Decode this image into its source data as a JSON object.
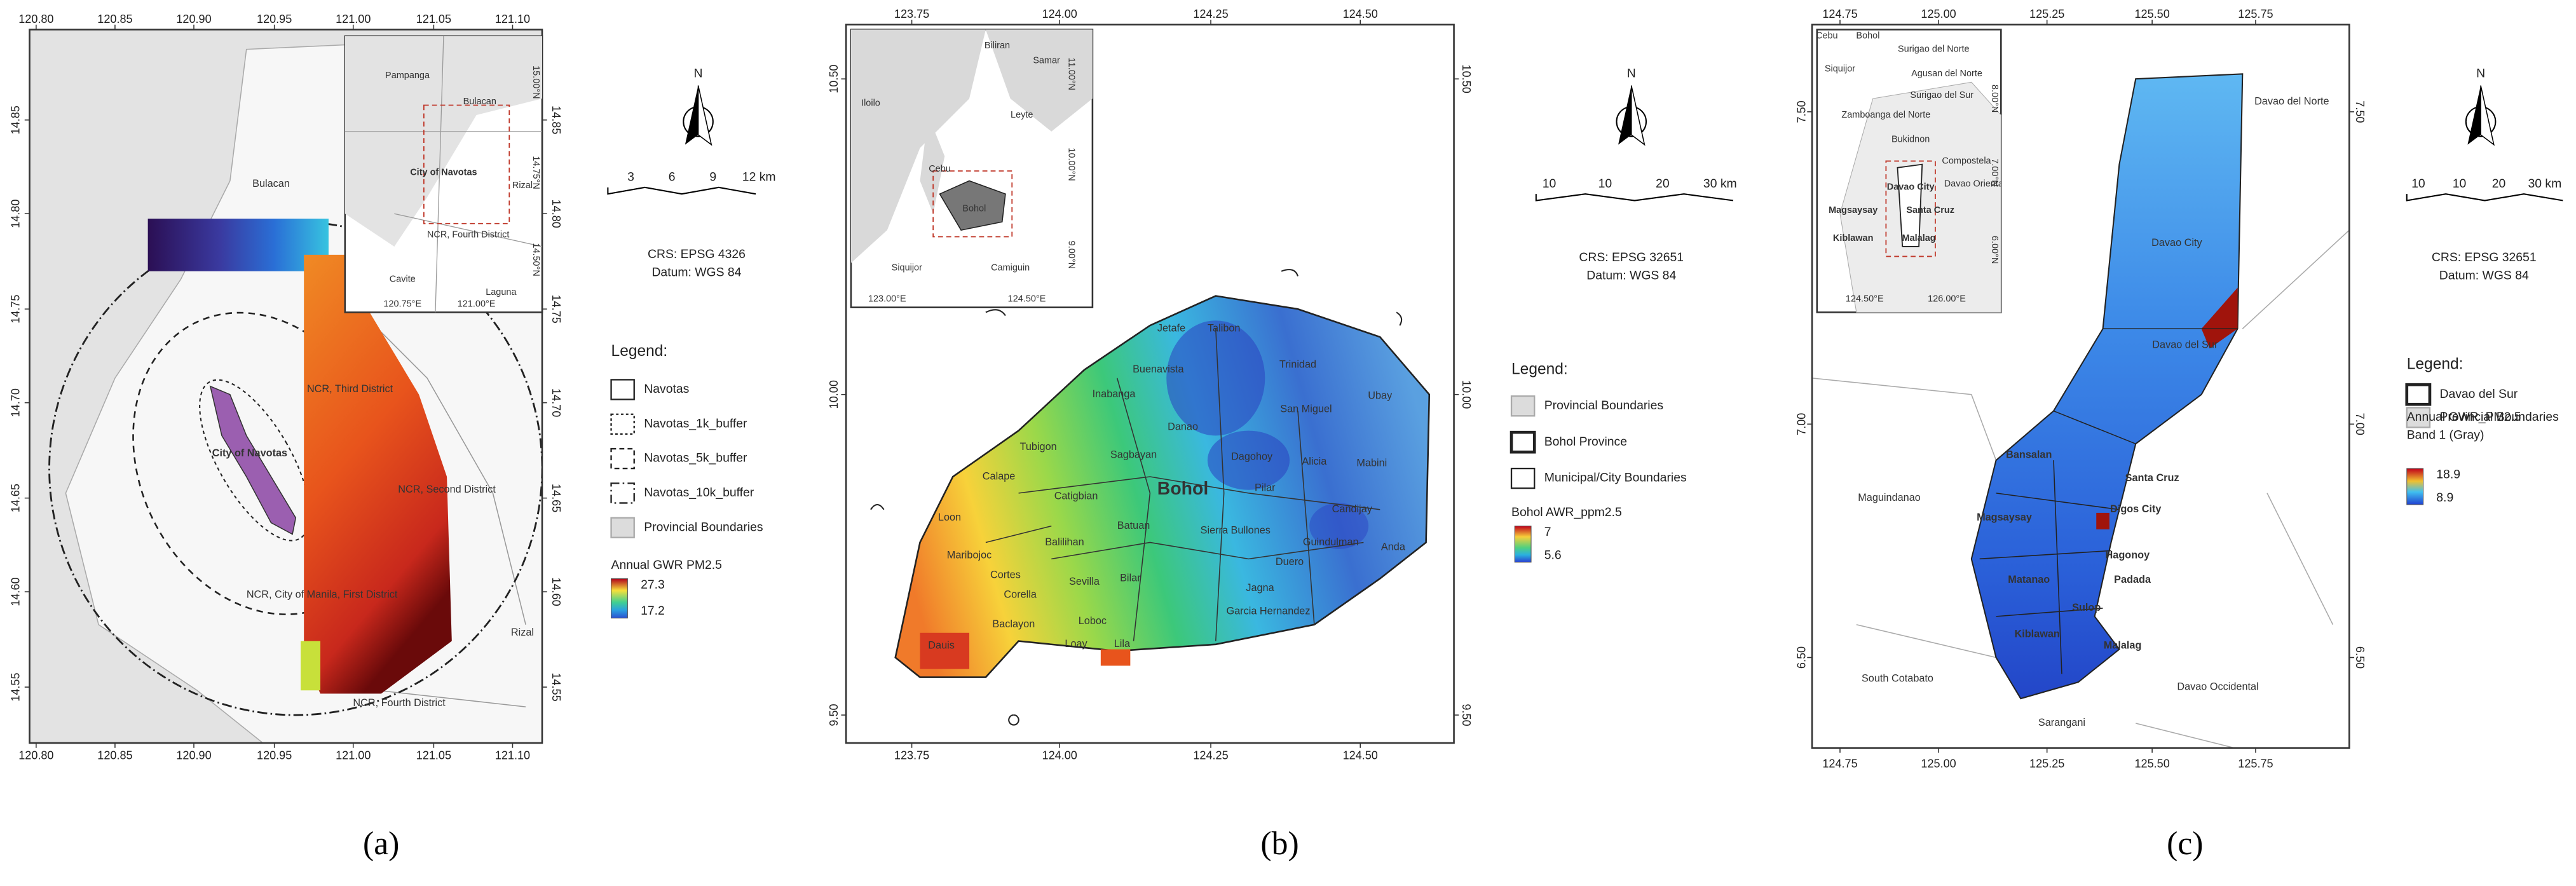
{
  "panels": [
    {
      "caption": "(a)",
      "x_ticks": [
        "120.80",
        "120.85",
        "120.90",
        "120.95",
        "121.00",
        "121.05",
        "121.10"
      ],
      "y_ticks": [
        "14.85",
        "14.80",
        "14.75",
        "14.70",
        "14.65",
        "14.60",
        "14.55"
      ],
      "places": [
        "Bulacan",
        "NCR, Third District",
        "City of Navotas",
        "NCR, Second District",
        "NCR, City of Manila, First District",
        "NCR, Fourth District",
        "Rizal"
      ],
      "inset": {
        "labels": [
          "Pampanga",
          "Bulacan",
          "City of Navotas",
          "Rizal",
          "NCR, Fourth District",
          "Cavite",
          "Laguna"
        ],
        "ticks": [
          "15.00°N",
          "14.75°N",
          "14.50°N",
          "120.75°E",
          "121.00°E"
        ]
      },
      "north": "N",
      "scale": [
        "3",
        "6",
        "9",
        "12 km"
      ],
      "crs": "CRS: EPSG 4326",
      "datum": "Datum: WGS 84",
      "legend": {
        "title": "Legend:",
        "items": [
          "Navotas",
          "Navotas_1k_buffer",
          "Navotas_5k_buffer",
          "Navotas_10k_buffer",
          "Provincial Boundaries"
        ],
        "ramp_title": [
          "Annual GWR PM2.5"
        ],
        "ramp_max": "27.3",
        "ramp_min": "17.2"
      }
    },
    {
      "caption": "(b)",
      "x_ticks": [
        "123.75",
        "124.00",
        "124.25",
        "124.50"
      ],
      "y_ticks": [
        "10.50",
        "10.00",
        "9.50"
      ],
      "places": [
        "Jetafe",
        "Talibon",
        "Buenavista",
        "Trinidad",
        "Inabanga",
        "San Miguel",
        "Ubay",
        "Danao",
        "Tubigon",
        "Sagbayan",
        "Dagohoy",
        "Alicia",
        "Mabini",
        "Calape",
        "Bohol",
        "Pilar",
        "Candijay",
        "Catigbian",
        "Loon",
        "Balilihan",
        "Batuan",
        "Sierra Bullones",
        "Guindulman",
        "Anda",
        "Maribojoc",
        "Cortes",
        "Corella",
        "Sevilla",
        "Bilar",
        "Duero",
        "Baclayon",
        "Jagna",
        "Loboc",
        "Garcia Hernandez",
        "Dauis",
        "Loay",
        "Lila"
      ],
      "inset": {
        "labels": [
          "Biliran",
          "Samar",
          "Iloilo",
          "Leyte",
          "Cebu",
          "Bohol",
          "Siquijor",
          "Camiguin"
        ],
        "ticks": [
          "11.00°N",
          "10.00°N",
          "9.00°N",
          "123.00°E",
          "124.50°E"
        ]
      },
      "north": "N",
      "scale": [
        "10",
        "10",
        "20",
        "30 km"
      ],
      "crs": "CRS: EPSG 32651",
      "datum": "Datum: WGS 84",
      "legend": {
        "title": "Legend:",
        "items": [
          "Provincial Boundaries",
          "Bohol Province",
          "Municipal/City Boundaries"
        ],
        "ramp_title": [
          "Bohol AWR_ppm2.5"
        ],
        "ramp_max": "7",
        "ramp_min": "5.6"
      }
    },
    {
      "caption": "(c)",
      "x_ticks": [
        "124.75",
        "125.00",
        "125.25",
        "125.50",
        "125.75"
      ],
      "y_ticks": [
        "7.50",
        "7.00",
        "6.50"
      ],
      "places": [
        "Davao del Norte",
        "Davao City",
        "Davao del Sur",
        "Maguindanao",
        "Bansalan",
        "Santa Cruz",
        "Digos City",
        "Magsaysay",
        "Hagonoy",
        "Matanao",
        "Padada",
        "Sulop",
        "Kiblawan",
        "Malalag",
        "South Cotabato",
        "Sarangani",
        "Davao Occidental"
      ],
      "inset": {
        "labels": [
          "Cebu",
          "Bohol",
          "Surigao del Norte",
          "Siquijor",
          "Agusan del Norte",
          "Surigao del Sur",
          "Zamboanga del Norte",
          "Bukidnon",
          "Compostela",
          "Davao Oriental",
          "Davao City",
          "Magsaysay",
          "Santa Cruz",
          "Kiblawan",
          "Malalag"
        ],
        "ticks": [
          "8.00°N",
          "7.00°N",
          "6.00°N",
          "124.50°E",
          "126.00°E"
        ]
      },
      "north": "N",
      "scale": [
        "10",
        "10",
        "20",
        "30 km"
      ],
      "crs": "CRS: EPSG 32651",
      "datum": "Datum: WGS 84",
      "legend": {
        "title": "Legend:",
        "items": [
          "Davao del Sur",
          "Provincial Boundaries"
        ],
        "ramp_title": [
          "Annual GWR_PM2.5",
          "Band 1 (Gray)"
        ],
        "ramp_max": "18.9",
        "ramp_min": "8.9"
      }
    }
  ]
}
